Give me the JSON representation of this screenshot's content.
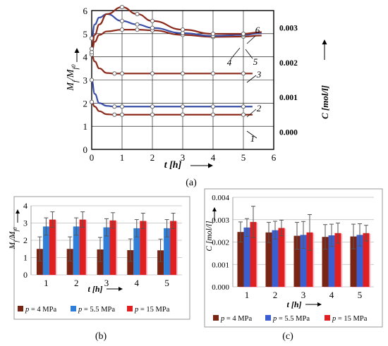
{
  "chart_data": [
    {
      "panel": "(a)",
      "type": "line",
      "xlabel": "t [h]",
      "ylabel_left": "Mf/Mf0",
      "ylabel_right": "C [mol/l]",
      "xlim": [
        0,
        6
      ],
      "ylim_left": [
        0,
        6
      ],
      "ylim_right": [
        -0.0005,
        0.0035
      ],
      "x_ticks": [
        "0",
        "1",
        "2",
        "3",
        "4",
        "5",
        "6"
      ],
      "y_ticks_left": [
        "0",
        "1",
        "2",
        "3",
        "4",
        "5",
        "6"
      ],
      "y_ticks_right": [
        "0.000",
        "0.001",
        "0.002",
        "0.003"
      ],
      "grid": true,
      "series": [
        {
          "name": "1",
          "axis": "left",
          "color": "#8b2a1a",
          "x": [
            0,
            0.1,
            0.25,
            0.5,
            0.75,
            1,
            2,
            3,
            4,
            5,
            5.3
          ],
          "y": [
            2.05,
            1.85,
            1.65,
            1.52,
            1.5,
            1.5,
            1.5,
            1.5,
            1.5,
            1.5,
            1.5
          ]
        },
        {
          "name": "2",
          "axis": "left",
          "color": "#3a4fa8",
          "x": [
            0,
            0.1,
            0.25,
            0.5,
            0.75,
            1,
            2,
            3,
            4,
            5,
            5.3
          ],
          "y": [
            3.0,
            2.4,
            2.0,
            1.88,
            1.85,
            1.85,
            1.85,
            1.85,
            1.85,
            1.85,
            1.85
          ]
        },
        {
          "name": "3",
          "axis": "left",
          "color": "#8b2a1a",
          "x": [
            0,
            0.1,
            0.25,
            0.5,
            0.75,
            1,
            2,
            3,
            4,
            5,
            5.3
          ],
          "y": [
            4.1,
            3.8,
            3.5,
            3.3,
            3.28,
            3.28,
            3.28,
            3.28,
            3.28,
            3.28,
            3.28
          ]
        },
        {
          "name": "4",
          "axis": "right",
          "color": "#8b2a1a",
          "x": [
            0,
            0.1,
            0.25,
            0.5,
            1,
            1.5,
            2,
            3,
            4,
            5,
            5.6
          ],
          "y": [
            0.0023,
            0.0026,
            0.0028,
            0.0029,
            0.00295,
            0.00295,
            0.00293,
            0.0028,
            0.00274,
            0.00275,
            0.00278
          ]
        },
        {
          "name": "5",
          "axis": "right",
          "color": "#3a4fa8",
          "x": [
            0,
            0.1,
            0.25,
            0.5,
            1,
            1.5,
            2,
            3,
            4,
            5,
            5.6
          ],
          "y": [
            0.0027,
            0.0031,
            0.0033,
            0.0034,
            0.0032,
            0.0031,
            0.003,
            0.00285,
            0.00277,
            0.0028,
            0.00285
          ]
        },
        {
          "name": "6",
          "axis": "right",
          "color": "#8b2a1a",
          "x": [
            0,
            0.1,
            0.25,
            0.5,
            1,
            1.5,
            2,
            3,
            4,
            5,
            5.6
          ],
          "y": [
            0.0024,
            0.0028,
            0.0031,
            0.0034,
            0.0036,
            0.0034,
            0.0032,
            0.00295,
            0.00283,
            0.00283,
            0.00288
          ]
        }
      ]
    },
    {
      "panel": "(b)",
      "type": "bar",
      "xlabel": "t [h]",
      "ylabel": "Mf/Mf0",
      "ylim": [
        0,
        4
      ],
      "y_ticks": [
        "0",
        "1",
        "2",
        "3",
        "4"
      ],
      "categories": [
        "1",
        "2",
        "3",
        "4",
        "5"
      ],
      "grid": true,
      "series": [
        {
          "name": "p = 4 MPa",
          "color": "#7a2414",
          "values": [
            1.5,
            1.5,
            1.47,
            1.43,
            1.42
          ],
          "err": [
            0.7,
            0.7,
            0.7,
            0.65,
            0.65
          ]
        },
        {
          "name": "p = 5.5 MPa",
          "color": "#2f7fd8",
          "values": [
            2.8,
            2.8,
            2.75,
            2.7,
            2.7
          ],
          "err": [
            0.5,
            0.5,
            0.5,
            0.5,
            0.5
          ]
        },
        {
          "name": "p = 15 MPa",
          "color": "#e02020",
          "values": [
            3.2,
            3.2,
            3.15,
            3.12,
            3.12
          ],
          "err": [
            0.45,
            0.45,
            0.45,
            0.45,
            0.45
          ]
        }
      ]
    },
    {
      "panel": "(c)",
      "type": "bar",
      "xlabel": "t [h]",
      "ylabel": "C [mol/l]",
      "ylim": [
        0,
        0.004
      ],
      "y_ticks": [
        "0.000",
        "0.001",
        "0.002",
        "0.003",
        "0.004"
      ],
      "categories": [
        "1",
        "2",
        "3",
        "4",
        "5"
      ],
      "grid": true,
      "series": [
        {
          "name": "p = 4 MPa",
          "color": "#7a2414",
          "values": [
            0.00245,
            0.00243,
            0.00228,
            0.00223,
            0.00225
          ],
          "err": [
            0.00045,
            0.00045,
            0.0006,
            0.00055,
            0.00055
          ]
        },
        {
          "name": "p = 5.5 MPa",
          "color": "#3b5fd0",
          "values": [
            0.00265,
            0.00253,
            0.00232,
            0.0023,
            0.00232
          ],
          "err": [
            0.0004,
            0.0004,
            0.0006,
            0.0005,
            0.0005
          ]
        },
        {
          "name": "p = 15 MPa",
          "color": "#e02020",
          "values": [
            0.0029,
            0.00263,
            0.00243,
            0.0024,
            0.0024
          ],
          "err": [
            0.0007,
            0.00035,
            0.0008,
            0.00045,
            0.00035
          ]
        }
      ]
    }
  ],
  "captions": [
    "(a)",
    "(b)",
    "(c)"
  ]
}
